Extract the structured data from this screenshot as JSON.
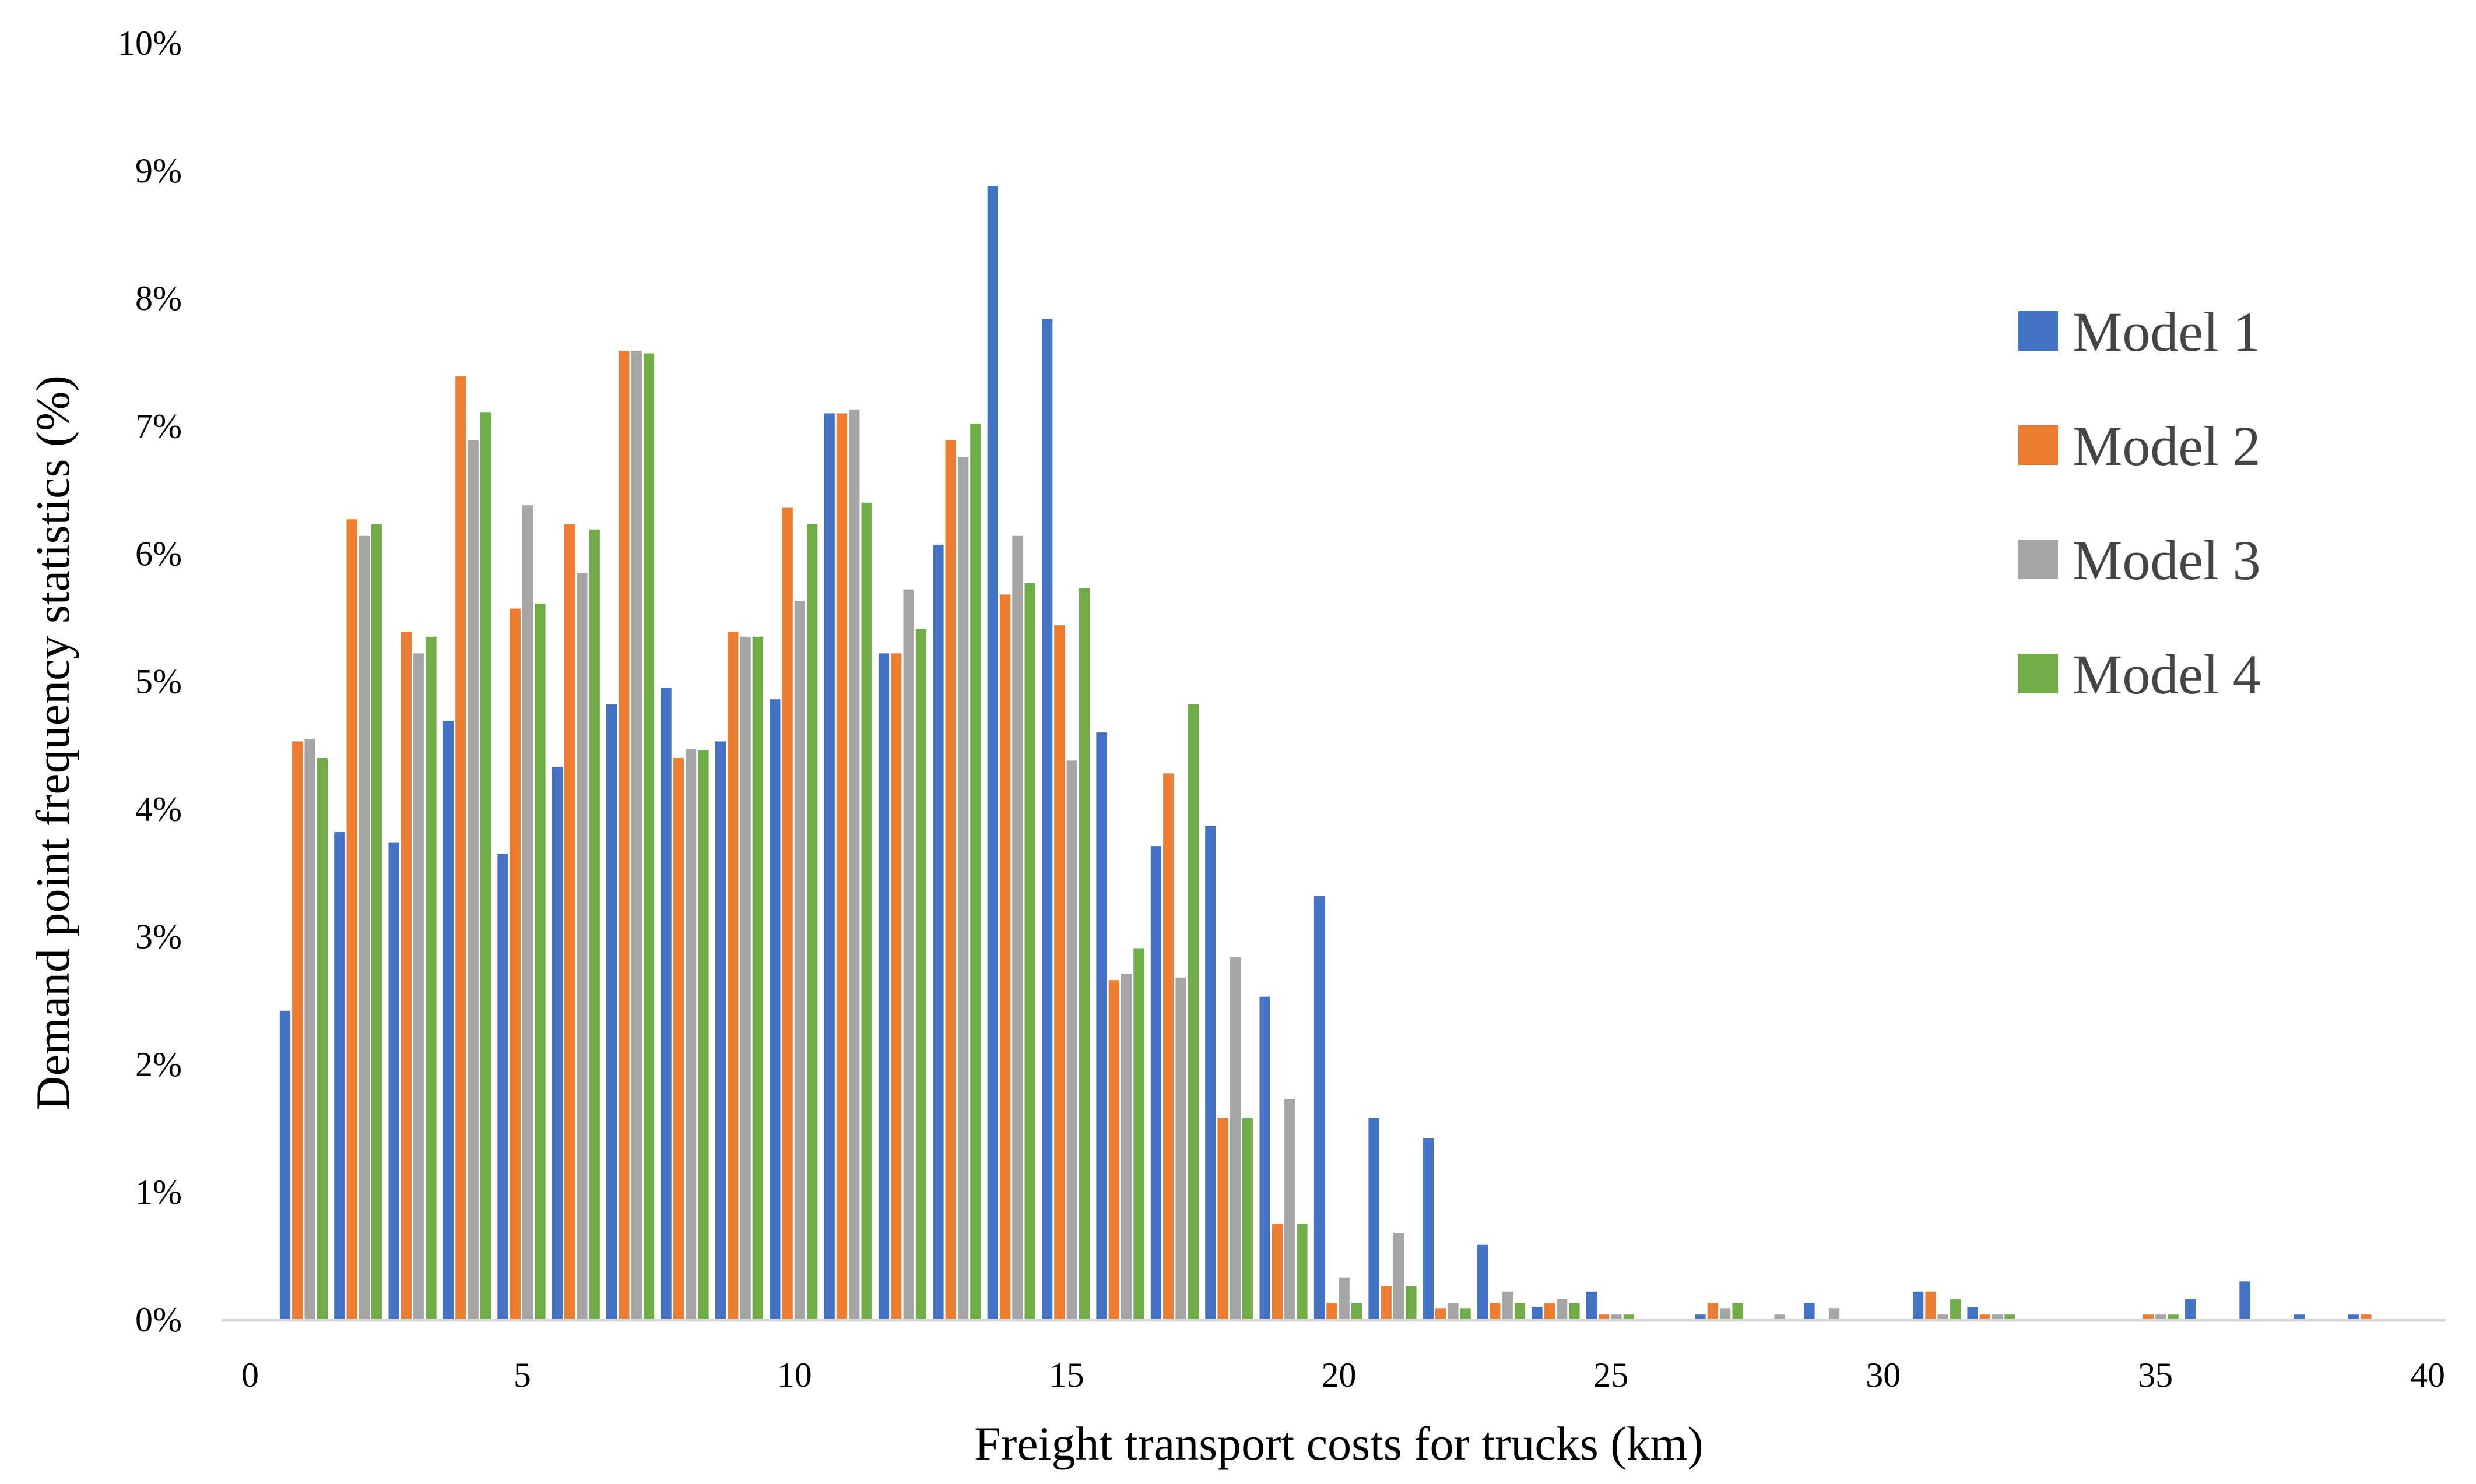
{
  "chart_data": {
    "type": "bar",
    "title": "",
    "xlabel": "Freight transport costs for trucks (km)",
    "ylabel": "Demand point frequency statistics (%)",
    "xlim": [
      0,
      40
    ],
    "ylim": [
      0,
      10
    ],
    "xticks": [
      0,
      5,
      10,
      15,
      20,
      25,
      30,
      35,
      40
    ],
    "yticks": [
      0,
      1,
      2,
      3,
      4,
      5,
      6,
      7,
      8,
      9,
      10
    ],
    "ytick_suffix": "%",
    "grid": false,
    "legend_position": "right",
    "categories": [
      1,
      2,
      3,
      4,
      5,
      6,
      7,
      8,
      9,
      10,
      11,
      12,
      13,
      14,
      15,
      16,
      17,
      18,
      19,
      20,
      21,
      22,
      23,
      24,
      25,
      26,
      27,
      28,
      29,
      30,
      31,
      32,
      33,
      34,
      35,
      36,
      37,
      38,
      39
    ],
    "series": [
      {
        "name": "Model 1",
        "color": "#4472c4",
        "values": [
          2.42,
          3.82,
          3.74,
          4.69,
          3.65,
          4.33,
          4.82,
          4.95,
          4.53,
          4.86,
          7.1,
          5.22,
          6.07,
          8.88,
          7.84,
          4.6,
          3.71,
          3.87,
          2.53,
          3.32,
          1.58,
          1.42,
          0.59,
          0.1,
          0.22,
          0.0,
          0.04,
          0.0,
          0.13,
          0.0,
          0.22,
          0.1,
          0.0,
          0.0,
          0.0,
          0.16,
          0.3,
          0.04,
          0.04
        ]
      },
      {
        "name": "Model 2",
        "color": "#ed7d31",
        "values": [
          4.53,
          6.27,
          5.39,
          7.39,
          5.57,
          6.23,
          7.59,
          4.4,
          5.39,
          6.36,
          7.1,
          5.22,
          6.89,
          5.68,
          5.44,
          2.66,
          4.28,
          1.58,
          0.75,
          0.13,
          0.26,
          0.09,
          0.13,
          0.13,
          0.04,
          0.0,
          0.13,
          0.0,
          0.0,
          0.0,
          0.22,
          0.04,
          0.0,
          0.0,
          0.04,
          0.0,
          0.0,
          0.0,
          0.04
        ]
      },
      {
        "name": "Model 3",
        "color": "#a5a5a5",
        "values": [
          4.55,
          6.14,
          5.22,
          6.89,
          6.38,
          5.85,
          7.59,
          4.47,
          5.35,
          5.63,
          7.13,
          5.72,
          6.76,
          6.14,
          4.38,
          2.71,
          2.68,
          2.84,
          1.73,
          0.33,
          0.68,
          0.13,
          0.22,
          0.16,
          0.04,
          0.0,
          0.09,
          0.04,
          0.09,
          0.0,
          0.04,
          0.04,
          0.0,
          0.0,
          0.04,
          0.0,
          0.0,
          0.0,
          0.0
        ]
      },
      {
        "name": "Model 4",
        "color": "#70ad47",
        "values": [
          4.4,
          6.23,
          5.35,
          7.11,
          5.61,
          6.19,
          7.57,
          4.46,
          5.35,
          6.23,
          6.4,
          5.41,
          7.02,
          5.77,
          5.73,
          2.91,
          4.82,
          1.58,
          0.75,
          0.13,
          0.26,
          0.09,
          0.13,
          0.13,
          0.04,
          0.0,
          0.13,
          0.0,
          0.0,
          0.0,
          0.16,
          0.04,
          0.0,
          0.0,
          0.04,
          0.0,
          0.0,
          0.0,
          0.0
        ]
      }
    ]
  }
}
